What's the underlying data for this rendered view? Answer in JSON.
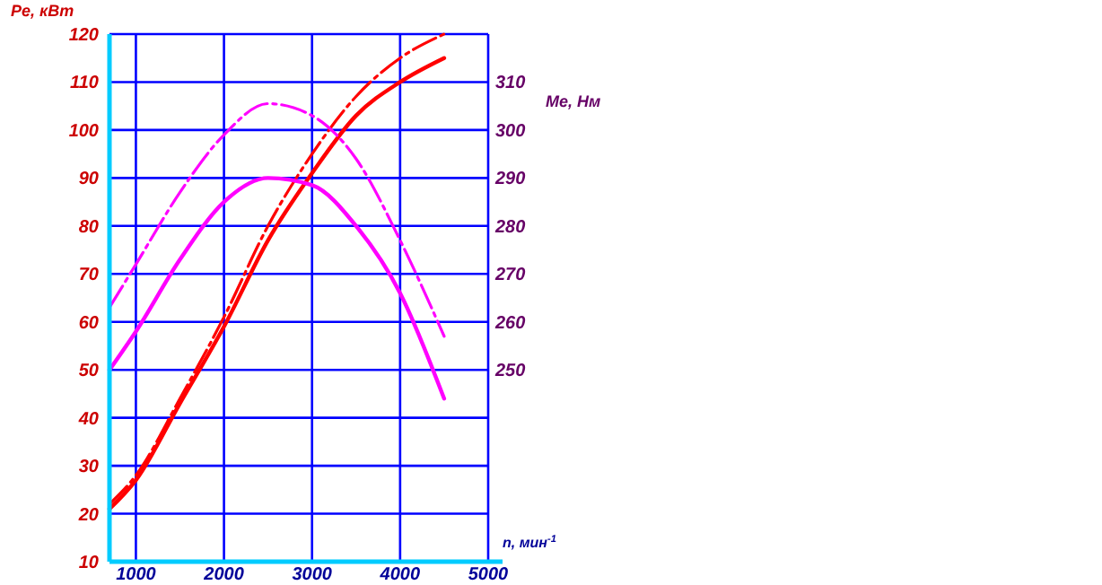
{
  "chart_data": {
    "type": "line",
    "xlabel": "n, мин$^{-1}$",
    "ylabel": "Pe, кВт",
    "y2label": "Me, Нм",
    "xlim": [
      700,
      5000
    ],
    "xticks": [
      1000,
      2000,
      3000,
      4000,
      5000
    ],
    "ylim": [
      10,
      120
    ],
    "yticks": [
      10,
      20,
      30,
      40,
      50,
      60,
      70,
      80,
      90,
      100,
      110,
      120
    ],
    "y2lim": [
      210,
      320
    ],
    "y2ticks": [
      250,
      260,
      270,
      280,
      290,
      300,
      310
    ],
    "grid": true,
    "marker": "none",
    "x": [
      700,
      1000,
      1500,
      2000,
      2500,
      3000,
      3500,
      4000,
      4500
    ],
    "series": [
      {
        "color": "#ff0000",
        "line_style": "solid",
        "values": [
          21,
          27,
          43,
          59,
          77,
          91,
          103,
          110,
          115
        ]
      },
      {
        "color": "#ff0000",
        "line_style": "dashed",
        "values": [
          22,
          28,
          44,
          61,
          80,
          95,
          107,
          115,
          120
        ]
      },
      {
        "color": "#ff00ff",
        "line_style": "solid",
        "axis": "y2",
        "values": [
          250,
          258,
          273,
          285,
          290,
          288.5,
          280,
          266,
          244
        ]
      },
      {
        "color": "#ff00ff",
        "line_style": "dashed",
        "axis": "y2",
        "values": [
          263,
          272,
          287,
          299,
          305.5,
          303,
          294,
          277,
          257
        ]
      }
    ]
  }
}
